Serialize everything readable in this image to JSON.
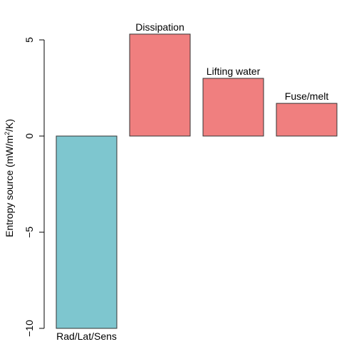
{
  "chart_data": {
    "type": "bar",
    "categories": [
      "Rad/Lat/Sens",
      "Dissipation",
      "Lifting water",
      "Fuse/melt"
    ],
    "values": [
      -10.0,
      5.3,
      3.0,
      1.7
    ],
    "colors": [
      "#7ec6cf",
      "#f07f7f",
      "#f07f7f",
      "#f07f7f"
    ],
    "ylabel": "Entropy source (mW/m",
    "ylabel_sup": "2",
    "ylabel_end": "/K)",
    "ylim": [
      -10,
      5.5
    ],
    "yticks": [
      -10,
      -5,
      0,
      5
    ],
    "ytick_labels": [
      "−10",
      "−5",
      "0",
      "5"
    ],
    "grid": false,
    "legend": "none"
  }
}
